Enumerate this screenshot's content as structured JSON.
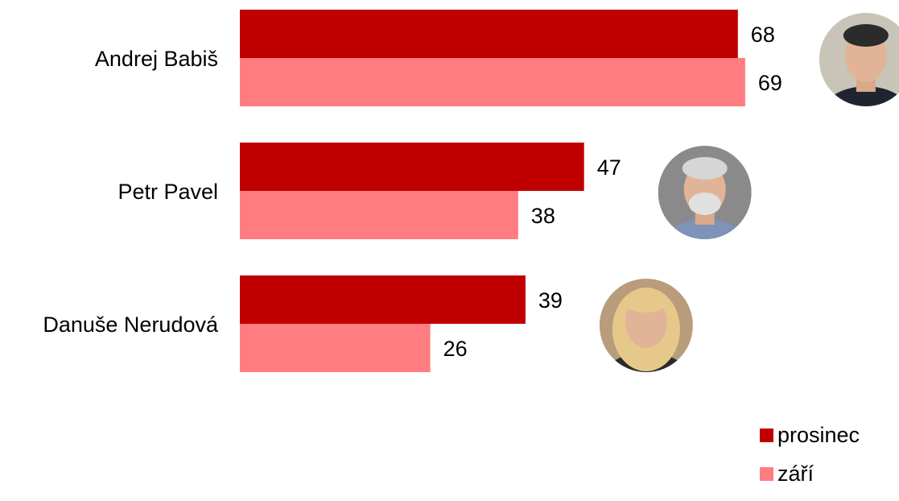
{
  "chart_data": {
    "type": "bar",
    "orientation": "horizontal",
    "categories": [
      "Andrej Babiš",
      "Petr Pavel",
      "Danuše Nerudová"
    ],
    "series": [
      {
        "name": "prosinec",
        "values": [
          68,
          47,
          39
        ],
        "color": "#c00000"
      },
      {
        "name": "září",
        "values": [
          69,
          38,
          26
        ],
        "color": "#ff7c80"
      }
    ],
    "xlim": [
      0,
      100
    ],
    "grid": false,
    "legend": {
      "position": "bottom-right"
    },
    "data_labels": true
  }
}
